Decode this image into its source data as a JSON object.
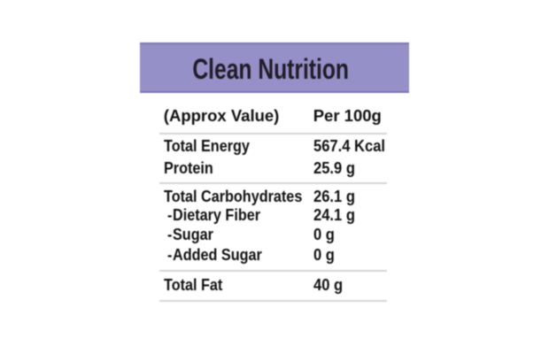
{
  "colors": {
    "background": "#ffffff",
    "title_bar": "#9590c8",
    "title_bar_border": "#7b76b3",
    "text": "#111111",
    "divider": "#d6d6d6"
  },
  "label": {
    "title": "Clean Nutrition",
    "column_headers": {
      "label": "(Approx Value)",
      "value": "Per 100g"
    },
    "rows": [
      {
        "name": "Total Energy",
        "value": "567.4 Kcal"
      },
      {
        "name": "Protein",
        "value": "25.9 g"
      },
      {
        "name": "Total Carbohydrates",
        "value": "26.1 g"
      },
      {
        "prefix": "-",
        "name": "Dietary Fiber",
        "value": "24.1 g"
      },
      {
        "prefix": "-",
        "name": "Sugar",
        "value": "0 g"
      },
      {
        "prefix": "-",
        "name": "Added Sugar",
        "value": "0 g"
      },
      {
        "name": "Total Fat",
        "value": "40 g"
      }
    ]
  }
}
